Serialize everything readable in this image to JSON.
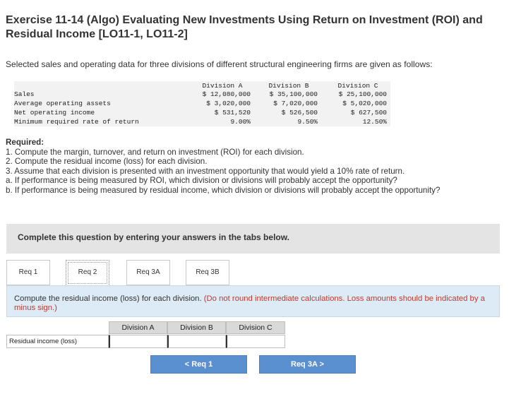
{
  "title": "Exercise 11-14 (Algo) Evaluating New Investments Using Return on Investment (ROI) and Residual Income [LO11-1, LO11-2]",
  "intro": "Selected sales and operating data for three divisions of different structural engineering firms are given as follows:",
  "data_table": {
    "headers": [
      "Division A",
      "Division B",
      "Division C"
    ],
    "rows": [
      {
        "label": "Sales",
        "a": "$ 12,080,000",
        "b": "$ 35,100,000",
        "c": "$ 25,100,000"
      },
      {
        "label": "Average operating assets",
        "a": "$ 3,020,000",
        "b": "$ 7,020,000",
        "c": "$ 5,020,000"
      },
      {
        "label": "Net operating income",
        "a": "$ 531,520",
        "b": "$ 526,500",
        "c": "$ 627,500"
      },
      {
        "label": "Minimum required rate of return",
        "a": "9.00%",
        "b": "9.50%",
        "c": "12.50%"
      }
    ]
  },
  "required": {
    "label": "Required:",
    "items": [
      "1. Compute the margin, turnover, and return on investment (ROI) for each division.",
      "2. Compute the residual income (loss) for each division.",
      "3. Assume that each division is presented with an investment opportunity that would yield a 10% rate of return.",
      "a. If performance is being measured by ROI, which division or divisions will probably accept the opportunity?",
      "b. If performance is being measured by residual income, which division or divisions will probably accept the opportunity?"
    ]
  },
  "banner": "Complete this question by entering your answers in the tabs below.",
  "tabs": [
    "Req 1",
    "Req 2",
    "Req 3A",
    "Req 3B"
  ],
  "active_tab": "Req 2",
  "instructions": {
    "main": "Compute the residual income (loss) for each division.",
    "note": "(Do not round intermediate calculations. Loss amounts should be indicated by a minus sign.)"
  },
  "answer_table": {
    "headers": [
      "Division A",
      "Division B",
      "Division C"
    ],
    "row_label": "Residual income (loss)",
    "values": [
      "",
      "",
      ""
    ]
  },
  "nav": {
    "prev": "<  Req 1",
    "next": "Req 3A  >"
  },
  "colors": {
    "accent_button": "#5a8fd0",
    "instruction_bg": "#dcebf5",
    "note_red": "#c0392b"
  }
}
